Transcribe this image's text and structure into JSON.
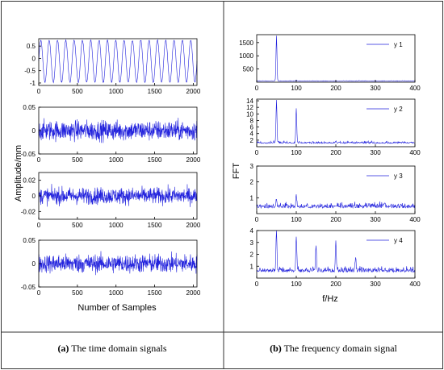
{
  "left_panel": {
    "ylabel": "Amplitude/mm",
    "xlabel": "Number of Samples",
    "caption_letter": "(a)",
    "caption_text": " The time domain signals"
  },
  "right_panel": {
    "ylabel": "FFT",
    "xlabel": "f/Hz",
    "caption_letter": "(b)",
    "caption_text": " The frequency domain signal"
  },
  "colors": {
    "line": "#2222dd",
    "axis": "#000000",
    "border": "#333333"
  },
  "chart_data": [
    {
      "type": "line",
      "panel": "left",
      "xlim": [
        0,
        2048
      ],
      "ylim": [
        -1.1,
        0.8
      ],
      "xticks": [
        0,
        500,
        1000,
        1500,
        2000
      ],
      "yticks": [
        0.5,
        0,
        -0.5,
        -1
      ],
      "ytick_labels": [
        "0.5",
        "0",
        "-0.5",
        "-1"
      ],
      "signal": {
        "kind": "sine",
        "cycles": 19,
        "amplitude": 0.85,
        "offset": -0.12,
        "noise": 0.05
      }
    },
    {
      "type": "line",
      "panel": "left",
      "xlim": [
        0,
        2048
      ],
      "ylim": [
        -0.05,
        0.05
      ],
      "xticks": [
        0,
        500,
        1000,
        1500,
        2000
      ],
      "yticks": [
        0.05,
        0,
        -0.05
      ],
      "ytick_labels": [
        "0.05",
        "0",
        "-0.05"
      ],
      "signal": {
        "kind": "noise",
        "amplitude": 0.028
      }
    },
    {
      "type": "line",
      "panel": "left",
      "xlim": [
        0,
        2048
      ],
      "ylim": [
        -0.03,
        0.03
      ],
      "xticks": [
        0,
        500,
        1000,
        1500,
        2000
      ],
      "yticks": [
        0.02,
        0,
        -0.02
      ],
      "ytick_labels": [
        "0.02",
        "0",
        "-0.02"
      ],
      "signal": {
        "kind": "noise",
        "amplitude": 0.014
      }
    },
    {
      "type": "line",
      "panel": "left",
      "xlim": [
        0,
        2048
      ],
      "ylim": [
        -0.05,
        0.05
      ],
      "xticks": [
        0,
        500,
        1000,
        1500,
        2000
      ],
      "yticks": [
        0.05,
        0,
        -0.05
      ],
      "ytick_labels": [
        "0.05",
        "0",
        "-0.05"
      ],
      "signal": {
        "kind": "noise",
        "amplitude": 0.026
      }
    },
    {
      "type": "line",
      "panel": "right",
      "legend": "y 1",
      "xlim": [
        0,
        400
      ],
      "ylim": [
        0,
        1800
      ],
      "xticks": [
        0,
        100,
        200,
        300,
        400
      ],
      "yticks": [
        500,
        1000,
        1500
      ],
      "ytick_labels": [
        "500",
        "1000",
        "1500"
      ],
      "baseline": 40,
      "noise": 20,
      "peaks": [
        {
          "x": 50,
          "y": 1750
        },
        {
          "x": 100,
          "y": 80
        },
        {
          "x": 200,
          "y": 35
        }
      ]
    },
    {
      "type": "line",
      "panel": "right",
      "legend": "y 2",
      "xlim": [
        0,
        400
      ],
      "ylim": [
        0,
        14.5
      ],
      "xticks": [
        0,
        100,
        200,
        300,
        400
      ],
      "yticks": [
        2,
        4,
        6,
        8,
        10,
        12,
        14
      ],
      "ytick_labels": [
        "2",
        "4",
        "6",
        "8",
        "10",
        "12",
        "14"
      ],
      "baseline": 1.0,
      "noise": 0.6,
      "peaks": [
        {
          "x": 50,
          "y": 14.2
        },
        {
          "x": 100,
          "y": 11.5
        },
        {
          "x": 200,
          "y": 1.4
        }
      ]
    },
    {
      "type": "line",
      "panel": "right",
      "legend": "y 3",
      "xlim": [
        0,
        400
      ],
      "ylim": [
        0,
        3
      ],
      "xticks": [
        0,
        100,
        200,
        300,
        400
      ],
      "yticks": [
        1,
        2,
        3
      ],
      "ytick_labels": [
        "1",
        "2",
        "3"
      ],
      "baseline": 0.35,
      "noise": 0.35,
      "peaks": [
        {
          "x": 50,
          "y": 0.9
        },
        {
          "x": 100,
          "y": 1.0
        }
      ]
    },
    {
      "type": "line",
      "panel": "right",
      "legend": "y 4",
      "xlim": [
        0,
        400
      ],
      "ylim": [
        0,
        4
      ],
      "xticks": [
        0,
        100,
        200,
        300,
        400
      ],
      "yticks": [
        1,
        2,
        3,
        4
      ],
      "ytick_labels": [
        "1",
        "2",
        "3",
        "4"
      ],
      "baseline": 0.5,
      "noise": 0.45,
      "peaks": [
        {
          "x": 50,
          "y": 4.0
        },
        {
          "x": 100,
          "y": 3.4
        },
        {
          "x": 150,
          "y": 2.6
        },
        {
          "x": 200,
          "y": 3.0
        },
        {
          "x": 250,
          "y": 1.4
        }
      ]
    }
  ]
}
